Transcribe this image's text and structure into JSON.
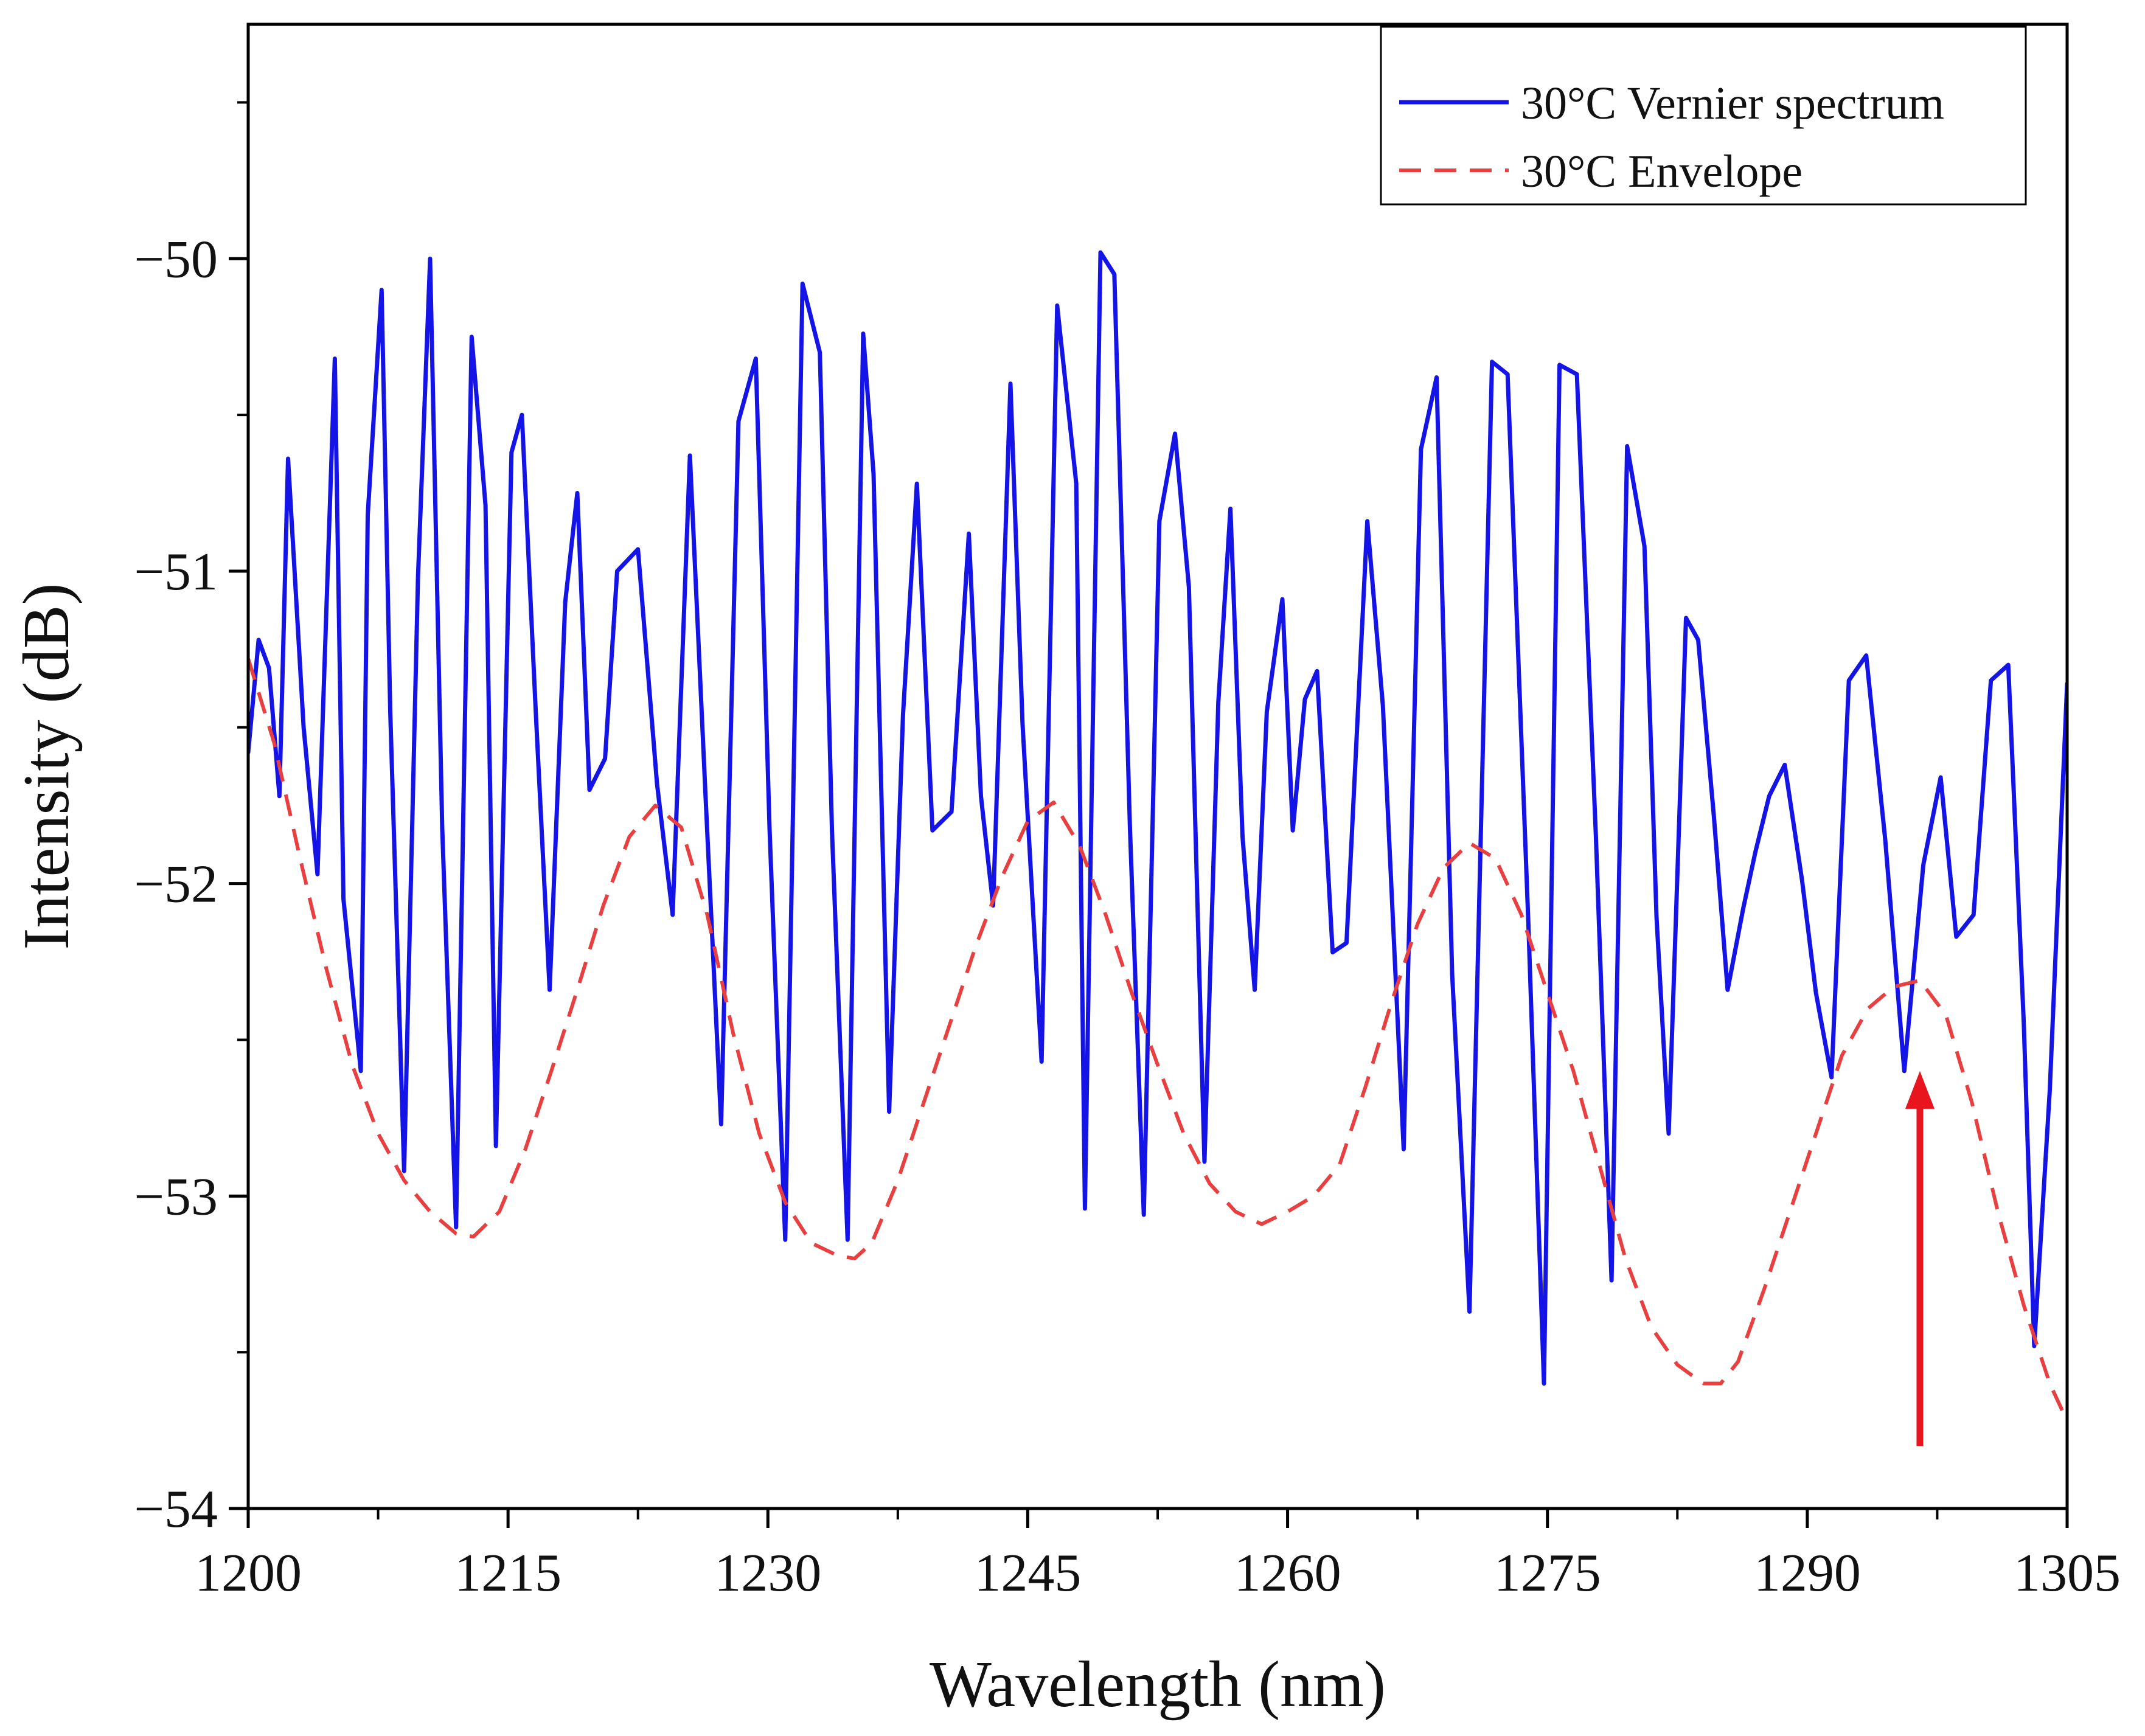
{
  "chart_data": {
    "type": "line",
    "title": "",
    "xlabel": "Wavelength (nm)",
    "ylabel": "Intensity (dB)",
    "xlim": [
      1200,
      1305
    ],
    "ylim": [
      -54,
      -49.25
    ],
    "xticks": [
      1200,
      1215,
      1230,
      1245,
      1260,
      1275,
      1290,
      1305
    ],
    "xtick_labels": [
      "1200",
      "1215",
      "1230",
      "1245",
      "1260",
      "1275",
      "1290",
      "1305"
    ],
    "yticks": [
      -54,
      -53,
      -52,
      -51,
      -50
    ],
    "ytick_labels": [
      "−54",
      "−53",
      "−52",
      "−51",
      "−50"
    ],
    "grid": false,
    "legend_position": "top-right",
    "series": [
      {
        "name": "30°C Vernier spectrum",
        "style": "solid",
        "color": "#1414e6",
        "x": [
          1200,
          1200.6,
          1201.2,
          1201.8,
          1202.3,
          1203.2,
          1204.0,
          1205.0,
          1205.5,
          1206.5,
          1206.9,
          1207.7,
          1208.2,
          1209.0,
          1209.8,
          1210.5,
          1211.2,
          1212.0,
          1212.9,
          1213.7,
          1214.3,
          1215.2,
          1215.8,
          1216.6,
          1217.4,
          1218.3,
          1219.0,
          1219.7,
          1220.6,
          1221.3,
          1222.5,
          1223.6,
          1224.5,
          1225.5,
          1226.4,
          1227.3,
          1228.3,
          1229.3,
          1230.1,
          1231.0,
          1232.0,
          1233.0,
          1233.7,
          1234.6,
          1235.5,
          1236.1,
          1237.0,
          1237.8,
          1238.6,
          1239.5,
          1240.6,
          1241.6,
          1242.3,
          1243.0,
          1244.0,
          1244.7,
          1245.8,
          1246.7,
          1247.8,
          1248.3,
          1249.2,
          1250.0,
          1250.9,
          1251.7,
          1252.6,
          1253.5,
          1254.3,
          1255.2,
          1256.0,
          1256.7,
          1257.4,
          1258.1,
          1258.8,
          1259.7,
          1260.3,
          1261.0,
          1261.7,
          1262.6,
          1263.4,
          1264.6,
          1265.5,
          1266.7,
          1267.7,
          1268.6,
          1269.5,
          1270.5,
          1271.8,
          1272.7,
          1273.9,
          1274.8,
          1275.7,
          1276.7,
          1277.8,
          1278.7,
          1279.6,
          1280.6,
          1281.3,
          1282.0,
          1283.0,
          1283.7,
          1284.6,
          1285.4,
          1286.3,
          1287.0,
          1287.8,
          1288.7,
          1289.7,
          1290.5,
          1291.4,
          1292.4,
          1293.4,
          1294.5,
          1295.6,
          1296.7,
          1297.7,
          1298.6,
          1299.6,
          1300.6,
          1301.6,
          1302.5,
          1303.1,
          1304.0,
          1305.0
        ],
        "y": [
          -51.58,
          -51.22,
          -51.31,
          -51.72,
          -50.64,
          -51.5,
          -51.97,
          -50.32,
          -52.05,
          -52.6,
          -50.82,
          -50.1,
          -51.45,
          -52.92,
          -51.02,
          -50.0,
          -51.82,
          -53.1,
          -50.25,
          -50.79,
          -52.84,
          -50.62,
          -50.5,
          -51.45,
          -52.34,
          -51.1,
          -50.75,
          -51.7,
          -51.6,
          -51.0,
          -50.93,
          -51.68,
          -52.1,
          -50.63,
          -51.72,
          -52.77,
          -50.52,
          -50.32,
          -51.83,
          -53.14,
          -50.08,
          -50.3,
          -51.83,
          -53.14,
          -50.24,
          -50.69,
          -52.73,
          -51.46,
          -50.72,
          -51.83,
          -51.77,
          -50.88,
          -51.72,
          -52.07,
          -50.4,
          -51.49,
          -52.57,
          -50.15,
          -50.72,
          -53.04,
          -49.98,
          -50.05,
          -51.82,
          -53.06,
          -50.84,
          -50.56,
          -51.05,
          -52.89,
          -51.42,
          -50.8,
          -51.85,
          -52.34,
          -51.45,
          -51.09,
          -51.83,
          -51.41,
          -51.32,
          -52.22,
          -52.19,
          -50.84,
          -51.43,
          -52.85,
          -50.61,
          -50.38,
          -52.29,
          -53.37,
          -50.33,
          -50.37,
          -52.13,
          -53.6,
          -50.34,
          -50.37,
          -51.85,
          -53.27,
          -50.6,
          -50.92,
          -52.11,
          -52.8,
          -51.15,
          -51.22,
          -51.78,
          -52.34,
          -52.08,
          -51.9,
          -51.72,
          -51.62,
          -51.99,
          -52.35,
          -52.62,
          -51.35,
          -51.27,
          -51.86,
          -52.6,
          -51.94,
          -51.66,
          -52.17,
          -52.1,
          -51.35,
          -51.3,
          -52.45,
          -53.48,
          -52.66,
          -51.36
        ]
      },
      {
        "name": "30°C Envelope",
        "style": "dashed",
        "color": "#e84040",
        "x": [
          1200,
          1201.5,
          1203,
          1204.5,
          1206,
          1207.5,
          1209,
          1210.5,
          1212,
          1213,
          1214.5,
          1216,
          1217.5,
          1219,
          1220.5,
          1222,
          1223.5,
          1225,
          1226.5,
          1228,
          1229.5,
          1231,
          1232.5,
          1234,
          1235,
          1236,
          1237.5,
          1239,
          1240.5,
          1242,
          1243.5,
          1245,
          1246.5,
          1248,
          1249.5,
          1251,
          1252.5,
          1254,
          1255.5,
          1257,
          1258.5,
          1260,
          1261.5,
          1263,
          1264.5,
          1266,
          1267.5,
          1269,
          1270.5,
          1272,
          1273.5,
          1275,
          1276.5,
          1278,
          1279.5,
          1281,
          1282.5,
          1284,
          1285,
          1286,
          1287.5,
          1289,
          1290.5,
          1292,
          1293.5,
          1295,
          1296.5,
          1298,
          1299.5,
          1301,
          1302.5,
          1304,
          1305
        ],
        "y": [
          -51.28,
          -51.55,
          -51.92,
          -52.27,
          -52.58,
          -52.8,
          -52.95,
          -53.05,
          -53.12,
          -53.13,
          -53.05,
          -52.85,
          -52.6,
          -52.34,
          -52.07,
          -51.85,
          -51.75,
          -51.82,
          -52.1,
          -52.48,
          -52.8,
          -53.02,
          -53.15,
          -53.19,
          -53.2,
          -53.15,
          -52.95,
          -52.7,
          -52.45,
          -52.2,
          -51.98,
          -51.8,
          -51.74,
          -51.88,
          -52.1,
          -52.35,
          -52.58,
          -52.8,
          -52.96,
          -53.05,
          -53.09,
          -53.05,
          -53.0,
          -52.9,
          -52.65,
          -52.38,
          -52.13,
          -51.95,
          -51.87,
          -51.92,
          -52.1,
          -52.35,
          -52.6,
          -52.9,
          -53.2,
          -53.42,
          -53.54,
          -53.6,
          -53.6,
          -53.53,
          -53.3,
          -53.05,
          -52.8,
          -52.55,
          -52.4,
          -52.33,
          -52.31,
          -52.42,
          -52.7,
          -53.05,
          -53.35,
          -53.6,
          -53.72
        ]
      }
    ],
    "annotations": [
      {
        "type": "arrow",
        "color": "#e8141e",
        "direction": "up",
        "x": 1296.5,
        "y_from": -53.8,
        "y_to": -52.6
      }
    ]
  }
}
